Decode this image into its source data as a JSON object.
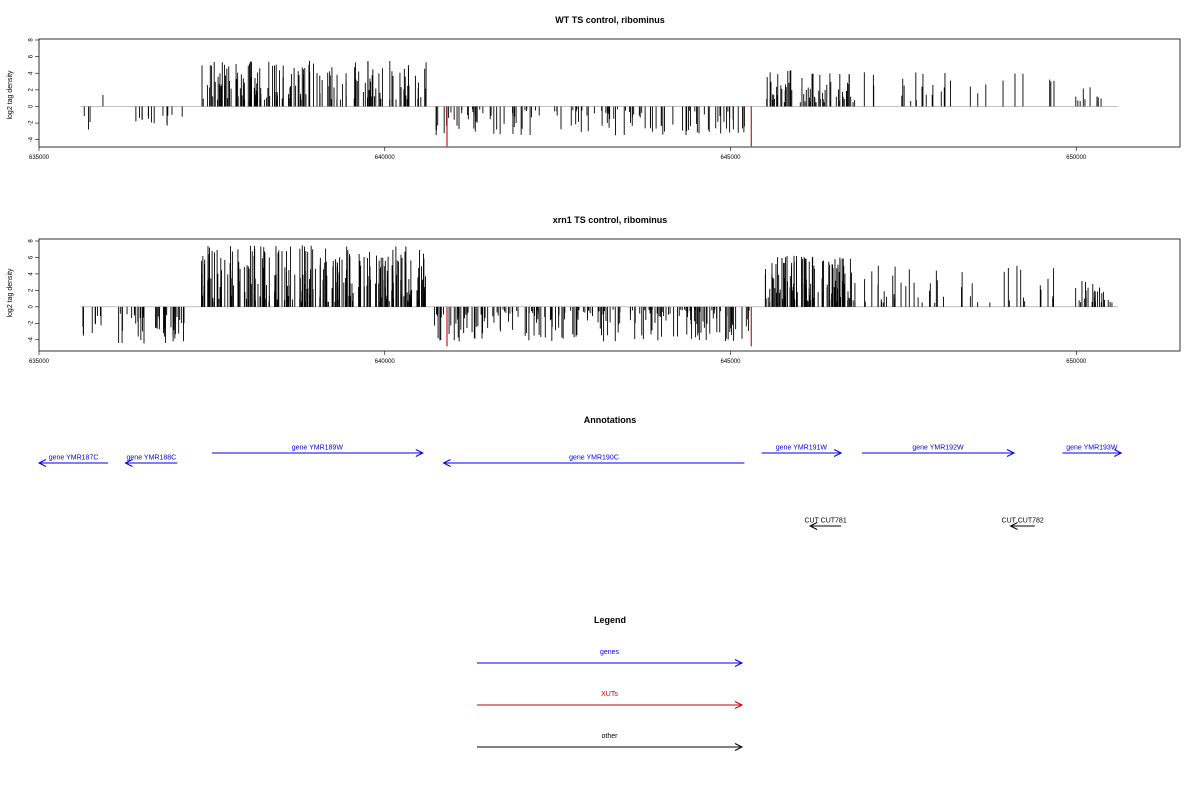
{
  "chart_data": [
    {
      "type": "bar",
      "title": "WT TS control, ribominus",
      "ylabel": "log2 tag density",
      "xlim": [
        635000,
        651500
      ],
      "ylim": [
        -5,
        8
      ],
      "x_ticks": [
        635000,
        640000,
        645000,
        650000
      ],
      "y_ticks": [
        -4,
        -2,
        0,
        2,
        4,
        6,
        8
      ],
      "grid": false,
      "baseline_range": [
        635600,
        650600
      ],
      "blocks": [
        {
          "start": 635600,
          "end": 635800,
          "sign": -1,
          "min": 1.0,
          "max": 3.2,
          "density": 3
        },
        {
          "start": 635850,
          "end": 635950,
          "sign": 1,
          "min": 1.0,
          "max": 2.0,
          "density": 1
        },
        {
          "start": 636200,
          "end": 637100,
          "sign": -1,
          "min": 1.0,
          "max": 3.2,
          "density": 14
        },
        {
          "start": 637350,
          "end": 640600,
          "sign": 1,
          "min": 0.8,
          "max": 5.5,
          "density": 170
        },
        {
          "start": 640700,
          "end": 645300,
          "sign": -1,
          "min": 0.3,
          "max": 3.5,
          "density": 120
        },
        {
          "start": 645500,
          "end": 646800,
          "sign": 1,
          "min": 0.5,
          "max": 4.4,
          "density": 70
        },
        {
          "start": 646900,
          "end": 649700,
          "sign": 1,
          "min": 0.6,
          "max": 4.2,
          "density": 28
        },
        {
          "start": 649950,
          "end": 650600,
          "sign": 1,
          "min": 0.6,
          "max": 2.5,
          "density": 10
        }
      ],
      "highlights": [
        {
          "x": 640900,
          "value": -4.8,
          "color": "#cc0000"
        },
        {
          "x": 645300,
          "value": -4.8,
          "color": "#cc0000"
        }
      ]
    },
    {
      "type": "bar",
      "title": "xrn1 TS control, ribominus",
      "ylabel": "log2 tag density",
      "xlim": [
        635000,
        651500
      ],
      "ylim": [
        -5,
        8
      ],
      "x_ticks": [
        635000,
        640000,
        645000,
        650000
      ],
      "y_ticks": [
        -4,
        -2,
        0,
        2,
        4,
        6,
        8
      ],
      "grid": false,
      "baseline_range": [
        635600,
        650600
      ],
      "blocks": [
        {
          "start": 635600,
          "end": 635900,
          "sign": -1,
          "min": 1.0,
          "max": 3.6,
          "density": 10
        },
        {
          "start": 636150,
          "end": 637100,
          "sign": -1,
          "min": 0.8,
          "max": 4.6,
          "density": 45
        },
        {
          "start": 637350,
          "end": 640600,
          "sign": 1,
          "min": 0.6,
          "max": 7.5,
          "density": 260
        },
        {
          "start": 640700,
          "end": 645300,
          "sign": -1,
          "min": 0.3,
          "max": 4.2,
          "density": 200
        },
        {
          "start": 645500,
          "end": 646800,
          "sign": 1,
          "min": 0.6,
          "max": 6.2,
          "density": 110
        },
        {
          "start": 646900,
          "end": 649700,
          "sign": 1,
          "min": 0.5,
          "max": 5.2,
          "density": 45
        },
        {
          "start": 649950,
          "end": 650600,
          "sign": 1,
          "min": 0.5,
          "max": 3.3,
          "density": 25
        }
      ],
      "highlights": [
        {
          "x": 640900,
          "value": -4.8,
          "color": "#cc0000"
        },
        {
          "x": 645300,
          "value": -4.8,
          "color": "#cc0000"
        }
      ]
    },
    {
      "type": "annotation",
      "title": "Annotations",
      "xlim": [
        635000,
        651500
      ],
      "features": [
        {
          "label": "gene YMR187C",
          "start": 635000,
          "end": 636000,
          "strand": "-",
          "lane": 2,
          "kind": "gene",
          "color": "#0000ee"
        },
        {
          "label": "gene YMR188C",
          "start": 636250,
          "end": 637000,
          "strand": "-",
          "lane": 2,
          "kind": "gene",
          "color": "#0000ee"
        },
        {
          "label": "gene YMR189W",
          "start": 637500,
          "end": 640550,
          "strand": "+",
          "lane": 1,
          "kind": "gene",
          "color": "#0000ee"
        },
        {
          "label": "gene YMR190C",
          "start": 640850,
          "end": 645200,
          "strand": "-",
          "lane": 2,
          "kind": "gene",
          "color": "#0000ee"
        },
        {
          "label": "gene YMR191W",
          "start": 645450,
          "end": 646600,
          "strand": "+",
          "lane": 1,
          "kind": "gene",
          "color": "#0000ee"
        },
        {
          "label": "gene YMR192W",
          "start": 646900,
          "end": 649100,
          "strand": "+",
          "lane": 1,
          "kind": "gene",
          "color": "#0000ee"
        },
        {
          "label": "gene YMR193W",
          "start": 649800,
          "end": 650650,
          "strand": "+",
          "lane": 1,
          "kind": "gene",
          "color": "#0000ee"
        },
        {
          "label": "CUT CUT781",
          "start": 646150,
          "end": 646600,
          "strand": "-",
          "lane": 3,
          "kind": "other",
          "color": "#000000"
        },
        {
          "label": "CUT CUT782",
          "start": 649050,
          "end": 649400,
          "strand": "-",
          "lane": 3,
          "kind": "other",
          "color": "#000000"
        }
      ]
    },
    {
      "type": "legend",
      "title": "Legend",
      "entries": [
        {
          "label": "genes",
          "color": "#0000ee"
        },
        {
          "label": "XUTs",
          "color": "#cc0000"
        },
        {
          "label": "other",
          "color": "#000000"
        }
      ]
    }
  ]
}
